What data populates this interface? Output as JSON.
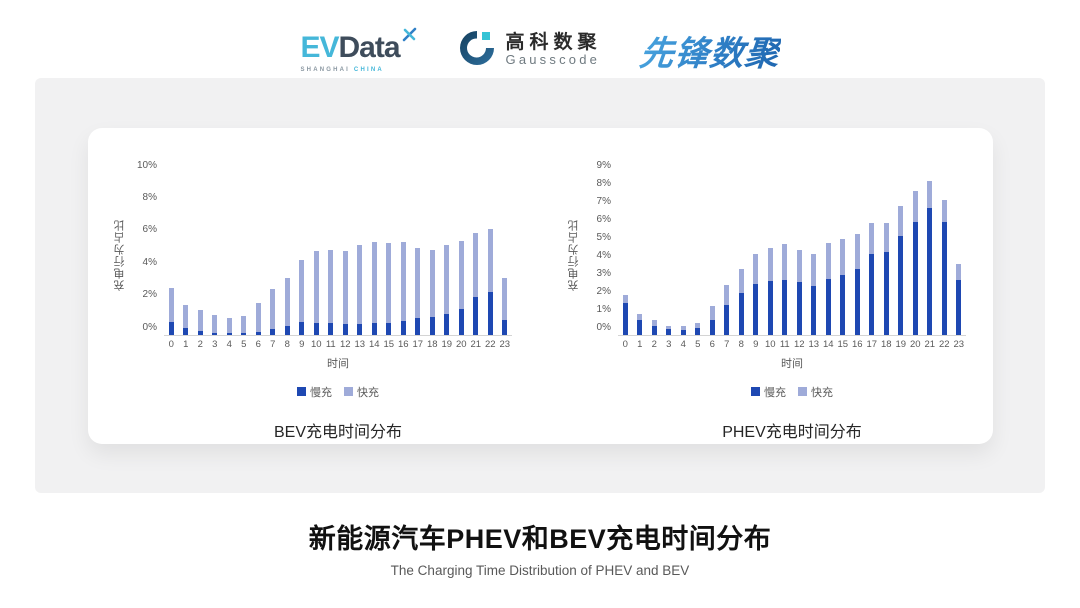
{
  "header": {
    "evdata": {
      "ev": "EV",
      "data": "Data",
      "sub_left": "SHANGHAI ",
      "sub_right": "CHINA"
    },
    "gausscode": {
      "cn": "高科数聚",
      "en": "Gausscode"
    },
    "pioneer": {
      "text": "先锋数聚"
    }
  },
  "colors": {
    "slow": "#1e48b2",
    "fast": "#9fabd9",
    "axis": "#d4d4d4",
    "tick_text": "#595959"
  },
  "legend": {
    "slow": "慢充",
    "fast": "快充"
  },
  "footer": {
    "title": "新能源汽车PHEV和BEV充电时间分布",
    "subtitle": "The Charging Time Distribution of PHEV and BEV"
  },
  "chart_data": [
    {
      "type": "bar",
      "stacked": true,
      "title": "BEV充电时间分布",
      "xlabel": "时间",
      "ylabel": "充电行为占比",
      "ymax": 10,
      "ystep": 2,
      "ylim": [
        0,
        10
      ],
      "grid": false,
      "legend_position": "bottom",
      "categories": [
        0,
        1,
        2,
        3,
        4,
        5,
        6,
        7,
        8,
        9,
        10,
        11,
        12,
        13,
        14,
        15,
        16,
        17,
        18,
        19,
        20,
        21,
        22,
        23
      ],
      "series": [
        {
          "name": "慢充",
          "values": [
            0.8,
            0.4,
            0.2,
            0.1,
            0.1,
            0.1,
            0.15,
            0.35,
            0.5,
            0.75,
            0.7,
            0.7,
            0.65,
            0.65,
            0.7,
            0.7,
            0.85,
            1.0,
            1.1,
            1.25,
            1.55,
            2.3,
            2.65,
            0.9
          ]
        },
        {
          "name": "快充",
          "values": [
            2.1,
            1.45,
            1.3,
            1.1,
            0.95,
            1.05,
            1.8,
            2.45,
            3.0,
            3.85,
            4.45,
            4.5,
            4.5,
            4.9,
            5.0,
            4.95,
            4.85,
            4.35,
            4.1,
            4.25,
            4.25,
            3.95,
            3.85,
            2.6
          ]
        }
      ]
    },
    {
      "type": "bar",
      "stacked": true,
      "title": "PHEV充电时间分布",
      "xlabel": "时间",
      "ylabel": "充电行为占比",
      "ymax": 9,
      "ystep": 1,
      "ylim": [
        0,
        9
      ],
      "grid": false,
      "legend_position": "bottom",
      "categories": [
        0,
        1,
        2,
        3,
        4,
        5,
        6,
        7,
        8,
        9,
        10,
        11,
        12,
        13,
        14,
        15,
        16,
        17,
        18,
        19,
        20,
        21,
        22,
        23
      ],
      "series": [
        {
          "name": "慢充",
          "values": [
            1.75,
            0.8,
            0.5,
            0.3,
            0.25,
            0.35,
            0.8,
            1.65,
            2.3,
            2.8,
            3.0,
            3.05,
            2.9,
            2.7,
            3.1,
            3.3,
            3.65,
            4.5,
            4.6,
            5.45,
            6.25,
            7.05,
            6.25,
            3.05
          ]
        },
        {
          "name": "快充",
          "values": [
            0.45,
            0.35,
            0.3,
            0.2,
            0.25,
            0.3,
            0.8,
            1.1,
            1.35,
            1.7,
            1.8,
            2.0,
            1.8,
            1.8,
            2.0,
            2.0,
            1.95,
            1.7,
            1.6,
            1.7,
            1.75,
            1.5,
            1.25,
            0.85
          ]
        }
      ]
    }
  ]
}
